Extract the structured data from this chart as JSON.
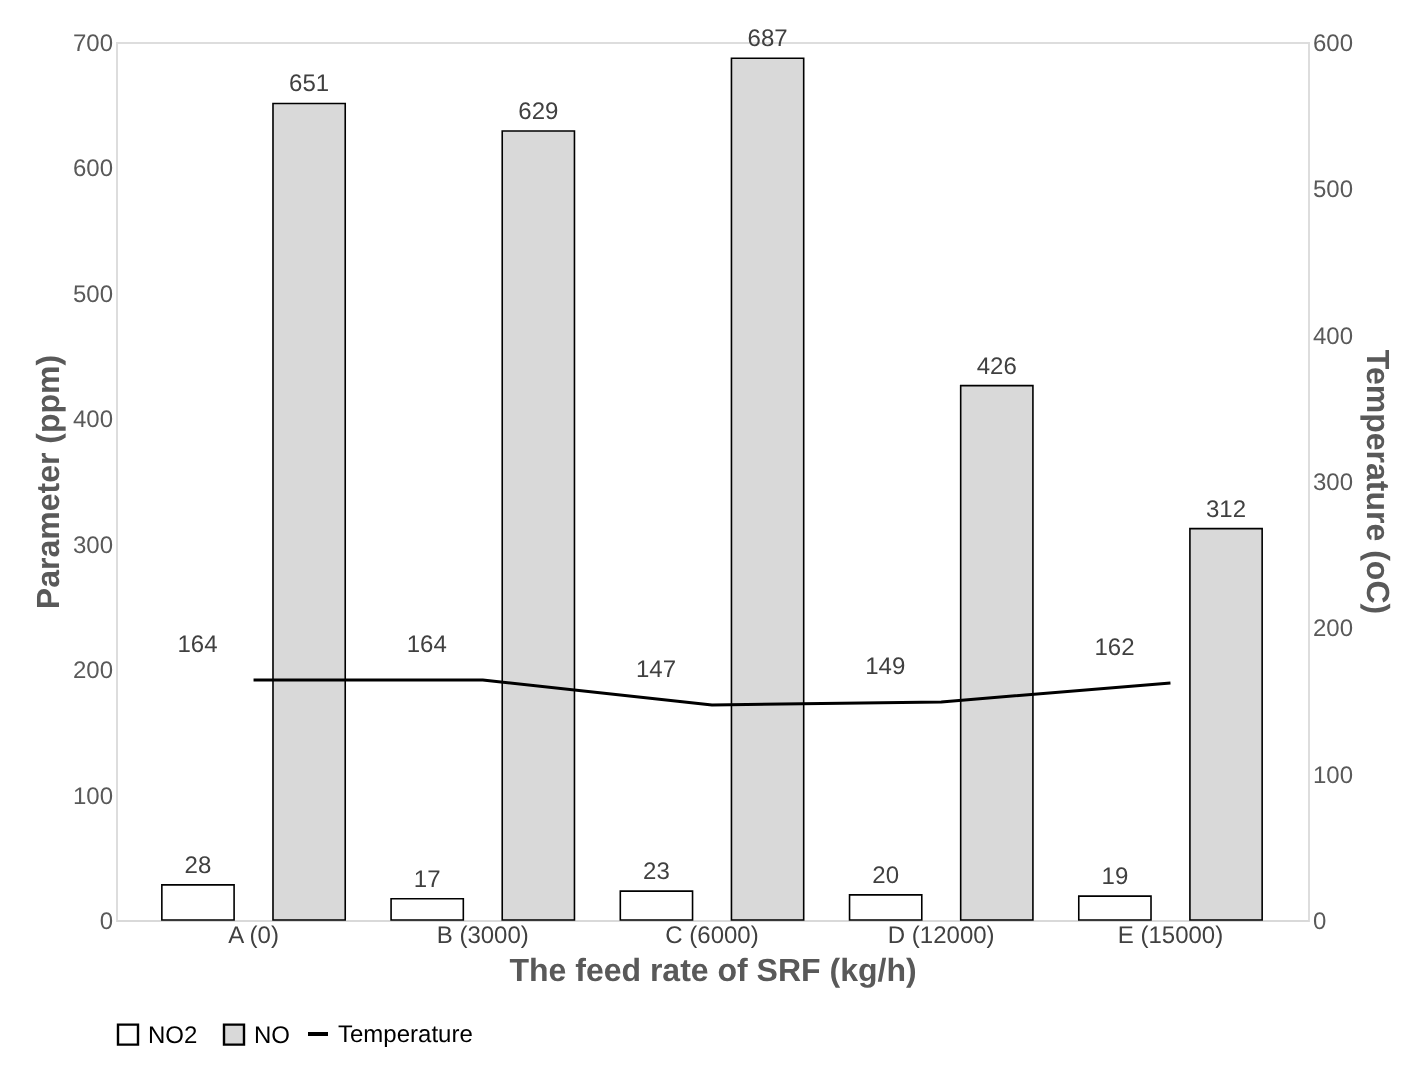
{
  "chart_data": {
    "type": "bar",
    "categories": [
      "A (0)",
      "B (3000)",
      "C (6000)",
      "D (12000)",
      "E (15000)"
    ],
    "series": [
      {
        "name": "NO2",
        "color": "#ffffff",
        "values": [
          28,
          17,
          23,
          20,
          19
        ]
      },
      {
        "name": "NO",
        "color": "#d9d9d9",
        "values": [
          651,
          629,
          687,
          426,
          312
        ]
      },
      {
        "name": "Temperature",
        "color": "#000000",
        "type": "line",
        "axis": "y2",
        "values": [
          164,
          164,
          147,
          149,
          162
        ]
      }
    ],
    "xlabel": "The feed rate of SRF (kg/h)",
    "ylabel": "Parameter (ppm)",
    "y2label": "Temperature (oC)",
    "ylim": [
      0,
      700
    ],
    "yticks": [
      0,
      100,
      200,
      300,
      400,
      500,
      600,
      700
    ],
    "y2lim": [
      0,
      600
    ],
    "y2ticks": [
      0,
      100,
      200,
      300,
      400,
      500,
      600
    ],
    "data_labels": true,
    "legend": "bottom"
  }
}
